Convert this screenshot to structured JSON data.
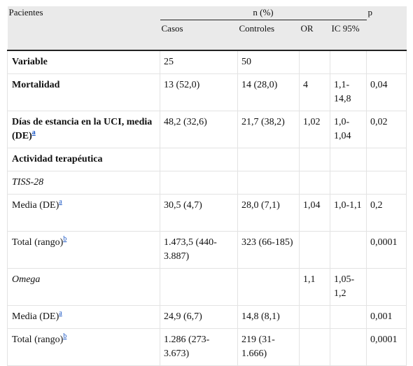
{
  "header": {
    "pacientes": "Pacientes",
    "n_pct": "n (%)",
    "p": "p",
    "casos": "Casos",
    "controles": "Controles",
    "or": "OR",
    "ic": "IC 95%"
  },
  "rows": [
    {
      "label": "Variable",
      "casos": "25",
      "controles": "50",
      "or": "",
      "ic": "",
      "p": ""
    },
    {
      "label": "Mortalidad",
      "casos": "13 (52,0)",
      "controles": "14 (28,0)",
      "or": "4",
      "ic": "1,1-14,8",
      "p": "0,04"
    },
    {
      "label": "Días de estancia en la UCI, media (DE)",
      "sup": "a",
      "casos": "48,2 (32,6)",
      "controles": "21,7 (38,2)",
      "or": "1,02",
      "ic": "1,0-1,04",
      "p": "0,02"
    },
    {
      "label": "Actividad terapéutica"
    },
    {
      "label": "TISS-28"
    },
    {
      "label": "Media (DE)",
      "sup": "a",
      "casos": "30,5 (4,7)",
      "controles": "28,0 (7,1)",
      "or": "1,04",
      "ic": "1,0-1,1",
      "p": "0,2"
    },
    {
      "label": "Total (rango)",
      "sup": "b",
      "casos": "1.473,5 (440-3.887)",
      "controles": "323 (66-185)",
      "or": "",
      "ic": "",
      "p": "0,0001"
    },
    {
      "label": "Omega",
      "casos": "",
      "controles": "",
      "or": "1,1",
      "ic": "1,05-1,2",
      "p": ""
    },
    {
      "label": "Media (DE)",
      "sup": "a",
      "casos": "24,9 (6,7)",
      "controles": "14,8 (8,1)",
      "or": "",
      "ic": "",
      "p": "0,001"
    },
    {
      "label": "Total (rango)",
      "sup": "b",
      "casos": "1.286 (273-3.673)",
      "controles": "219 (31-1.666)",
      "or": "",
      "ic": "",
      "p": "0,0001"
    }
  ]
}
